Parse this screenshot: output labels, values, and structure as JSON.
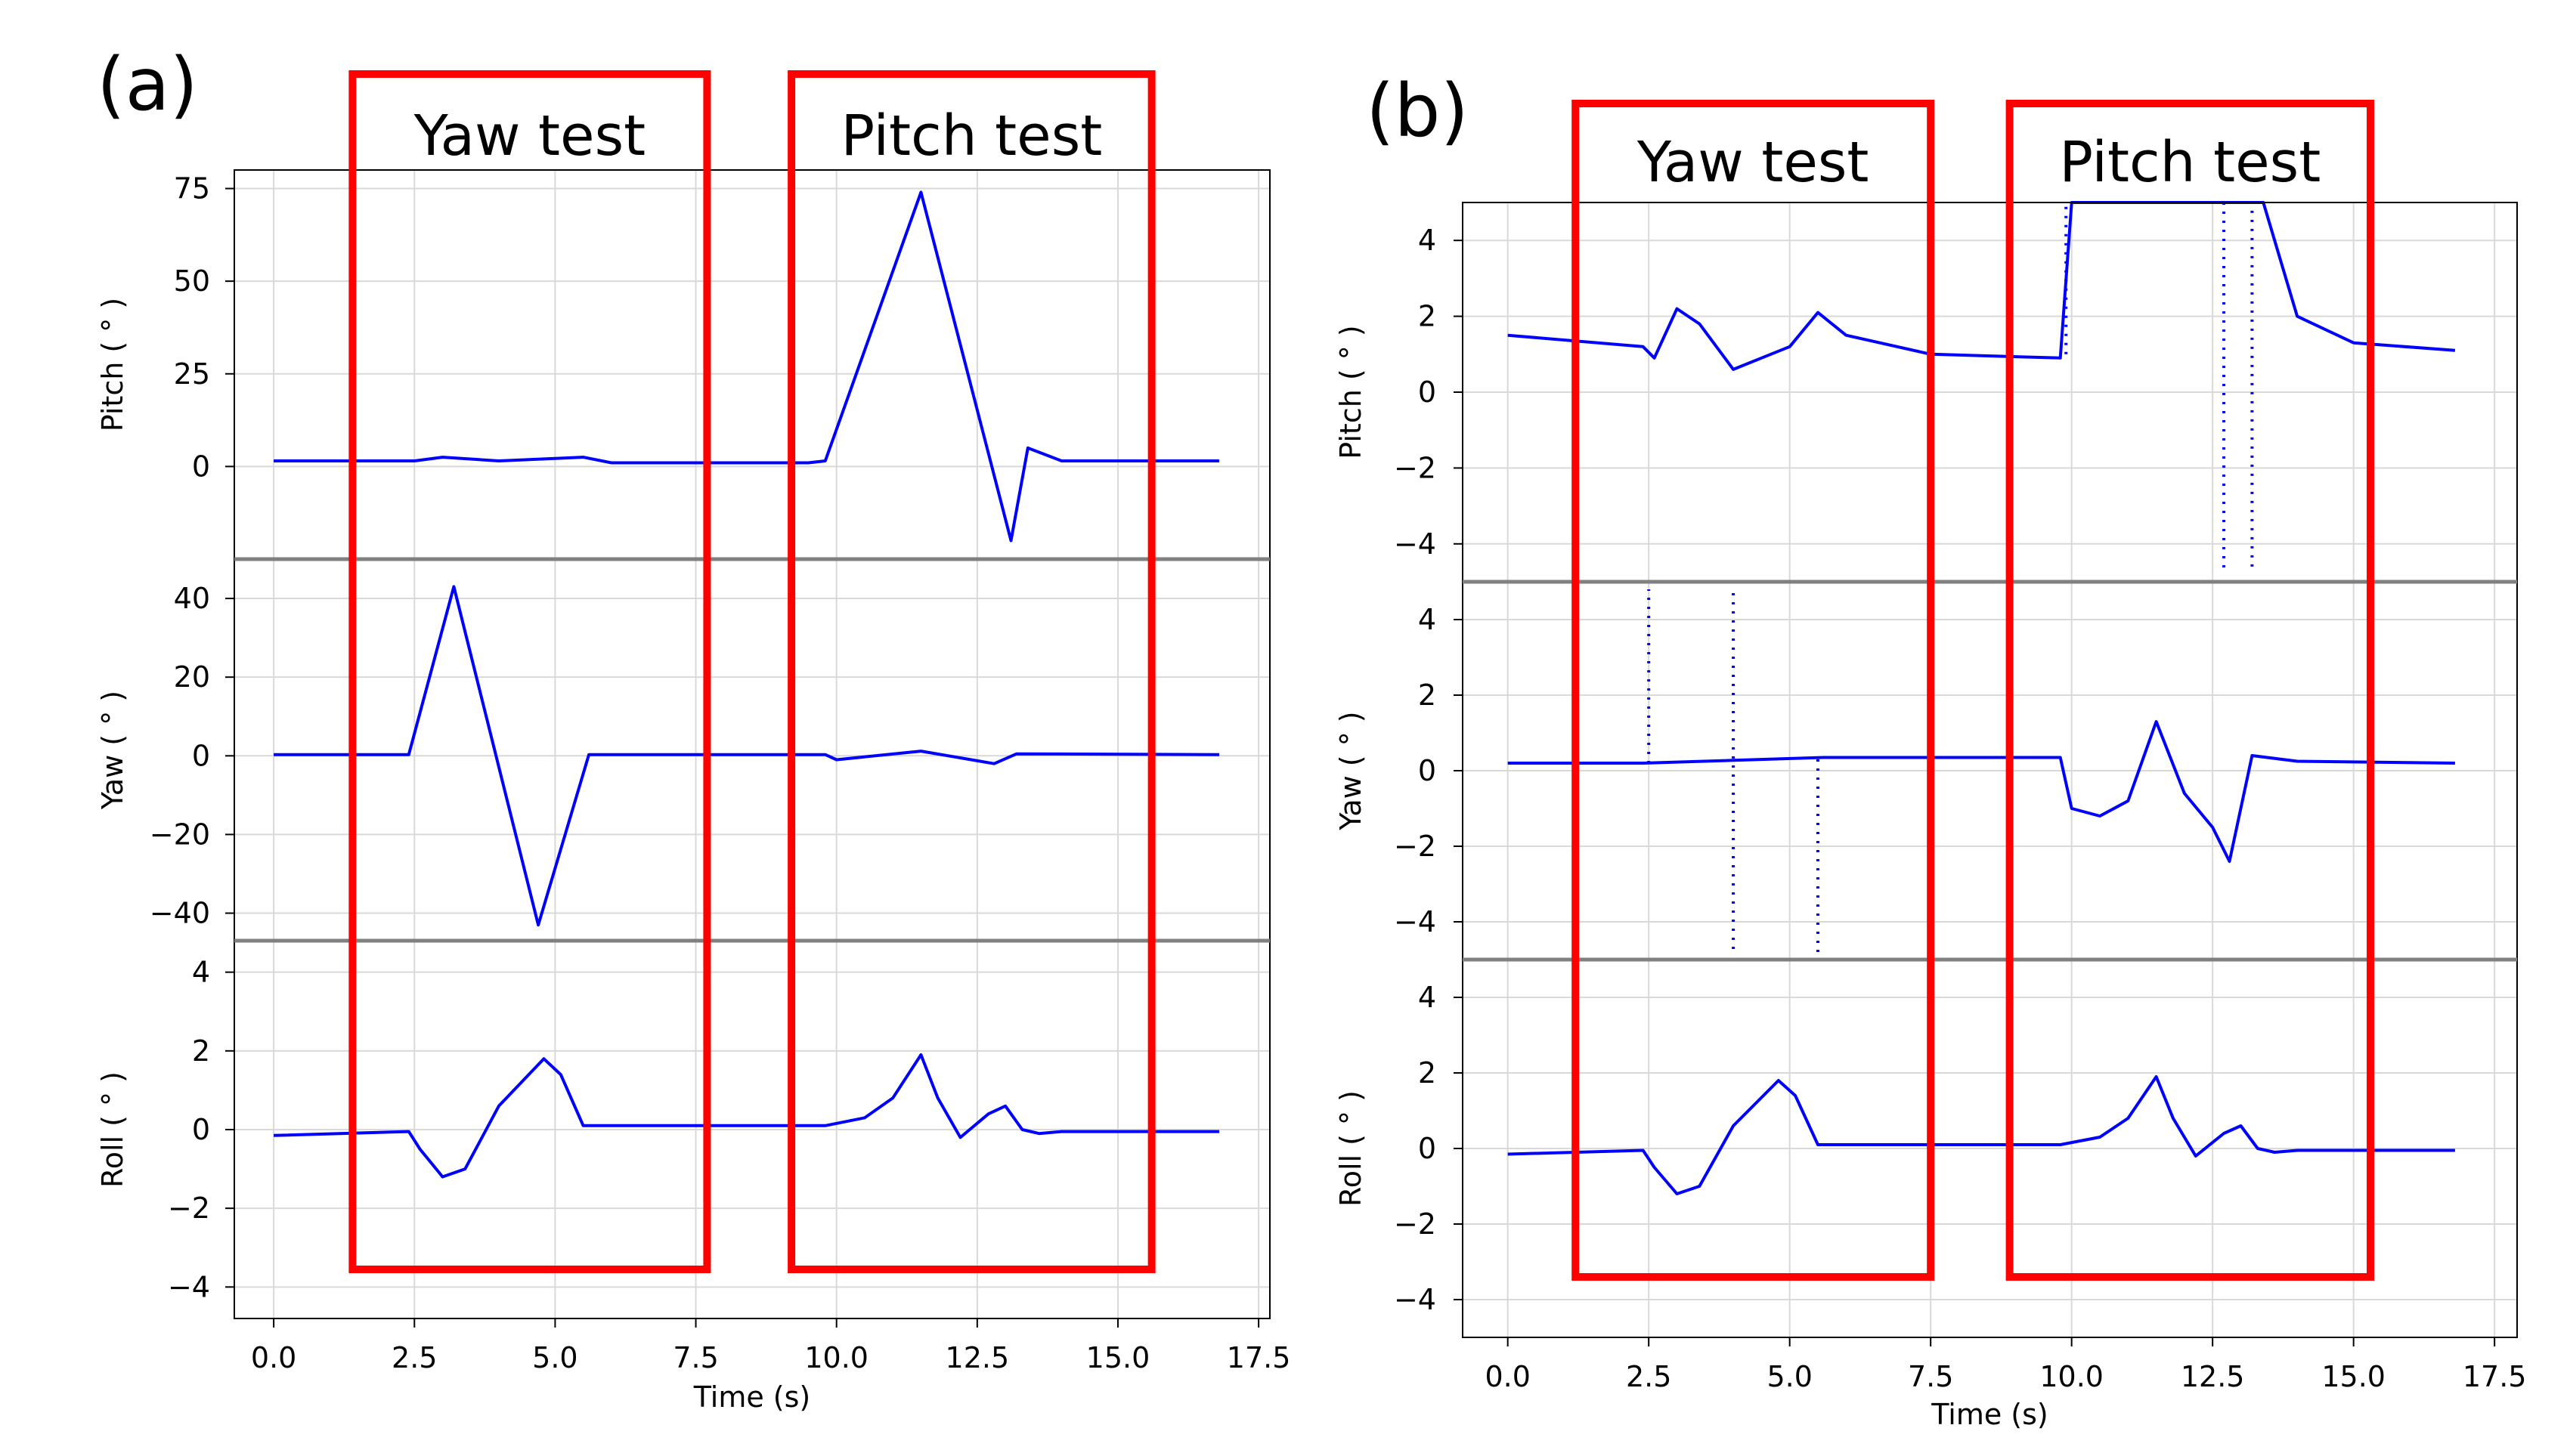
{
  "colors": {
    "series": "#0000ff",
    "highlight_box": "#ff0000",
    "grid": "#d9d9d9",
    "axis": "#000000",
    "panel_divider": "#808080"
  },
  "chart_data": [
    {
      "panel_label": "(a)",
      "type": "line",
      "xlabel": "Time (s)",
      "x_ticks": [
        "0.0",
        "2.5",
        "5.0",
        "7.5",
        "10.0",
        "12.5",
        "15.0",
        "17.5"
      ],
      "xlim": [
        -0.7,
        17.7
      ],
      "highlight_boxes": [
        {
          "label": "Yaw test",
          "t_start": 1.4,
          "t_end": 7.7
        },
        {
          "label": "Pitch test",
          "t_start": 9.2,
          "t_end": 15.6
        }
      ],
      "subplots": [
        {
          "ylabel": "Pitch ( ° )",
          "ylim": [
            -25,
            80
          ],
          "y_ticks": [
            75,
            50,
            25,
            0
          ],
          "x": [
            0.0,
            2.5,
            3.0,
            4.0,
            5.5,
            6.0,
            9.5,
            9.8,
            11.5,
            13.1,
            13.4,
            14.0,
            16.8
          ],
          "y": [
            1.5,
            1.5,
            2.5,
            1.5,
            2.5,
            1.0,
            1.0,
            1.5,
            74,
            -20,
            5,
            1.5,
            1.5
          ]
        },
        {
          "ylabel": "Yaw ( ° )",
          "ylim": [
            -47,
            50
          ],
          "y_ticks": [
            40,
            20,
            0,
            -20,
            -40
          ],
          "x": [
            0.0,
            2.4,
            3.2,
            4.7,
            5.6,
            9.8,
            10.0,
            11.5,
            12.8,
            13.2,
            16.8
          ],
          "y": [
            0.3,
            0.3,
            43,
            -43,
            0.3,
            0.3,
            -1.0,
            1.2,
            -2.0,
            0.5,
            0.3
          ]
        },
        {
          "ylabel": "Roll ( ° )",
          "ylim": [
            -4.8,
            4.8
          ],
          "y_ticks": [
            4,
            2,
            0,
            -2,
            -4
          ],
          "x": [
            0.0,
            2.4,
            2.6,
            3.0,
            3.4,
            4.0,
            4.8,
            5.1,
            5.5,
            9.8,
            10.5,
            11.0,
            11.5,
            11.8,
            12.2,
            12.7,
            13.0,
            13.3,
            13.6,
            14.0,
            16.8
          ],
          "y": [
            -0.15,
            -0.05,
            -0.5,
            -1.2,
            -1.0,
            0.6,
            1.8,
            1.4,
            0.1,
            0.1,
            0.3,
            0.8,
            1.9,
            0.8,
            -0.2,
            0.4,
            0.6,
            0.0,
            -0.1,
            -0.05,
            -0.05
          ]
        }
      ]
    },
    {
      "panel_label": "(b)",
      "type": "line",
      "xlabel": "Time (s)",
      "x_ticks": [
        "0.0",
        "2.5",
        "5.0",
        "7.5",
        "10.0",
        "12.5",
        "15.0",
        "17.5"
      ],
      "xlim": [
        -0.8,
        17.9
      ],
      "highlight_boxes": [
        {
          "label": "Yaw test",
          "t_start": 1.2,
          "t_end": 7.5
        },
        {
          "label": "Pitch test",
          "t_start": 8.9,
          "t_end": 15.3
        }
      ],
      "subplots": [
        {
          "ylabel": "Pitch ( ° )",
          "ylim": [
            -5,
            5
          ],
          "y_ticks": [
            4,
            2,
            0,
            -2,
            -4
          ],
          "x": [
            0.0,
            2.4,
            2.6,
            3.0,
            3.4,
            4.0,
            4.5,
            5.0,
            5.5,
            6.0,
            7.5,
            9.8,
            10.0,
            13.4,
            14.0,
            15.0,
            16.8
          ],
          "y": [
            1.5,
            1.2,
            0.9,
            2.2,
            1.8,
            0.6,
            0.9,
            1.2,
            2.1,
            1.5,
            1.0,
            0.9,
            5.0,
            5.0,
            2.0,
            1.3,
            1.1
          ],
          "spikes": [
            {
              "x": 9.9,
              "y_from": 1.0,
              "y_to": 5.0
            },
            {
              "x": 12.7,
              "y_from": 5.0,
              "y_to": -4.8
            },
            {
              "x": 13.2,
              "y_from": -4.6,
              "y_to": 5.0
            }
          ]
        },
        {
          "ylabel": "Yaw ( ° )",
          "ylim": [
            -5,
            5
          ],
          "y_ticks": [
            4,
            2,
            0,
            -2,
            -4
          ],
          "x": [
            0.0,
            2.4,
            5.6,
            9.8,
            10.0,
            10.5,
            11.0,
            11.5,
            12.0,
            12.5,
            12.8,
            13.2,
            14.0,
            16.8
          ],
          "y": [
            0.2,
            0.2,
            0.35,
            0.35,
            -1.0,
            -1.2,
            -0.8,
            1.3,
            -0.6,
            -1.5,
            -2.4,
            0.4,
            0.25,
            0.2
          ],
          "spikes": [
            {
              "x": 2.5,
              "y_from": 0.2,
              "y_to": 4.8
            },
            {
              "x": 4.0,
              "y_from": 4.7,
              "y_to": -4.8
            },
            {
              "x": 5.5,
              "y_from": -4.8,
              "y_to": 0.35
            }
          ]
        },
        {
          "ylabel": "Roll ( ° )",
          "ylim": [
            -5,
            5
          ],
          "y_ticks": [
            4,
            2,
            0,
            -2,
            -4
          ],
          "x": [
            0.0,
            2.4,
            2.6,
            3.0,
            3.4,
            4.0,
            4.8,
            5.1,
            5.5,
            9.8,
            10.5,
            11.0,
            11.5,
            11.8,
            12.2,
            12.7,
            13.0,
            13.3,
            13.6,
            14.0,
            16.8
          ],
          "y": [
            -0.15,
            -0.05,
            -0.5,
            -1.2,
            -1.0,
            0.6,
            1.8,
            1.4,
            0.1,
            0.1,
            0.3,
            0.8,
            1.9,
            0.8,
            -0.2,
            0.4,
            0.6,
            0.0,
            -0.1,
            -0.05,
            -0.05
          ]
        }
      ]
    }
  ]
}
